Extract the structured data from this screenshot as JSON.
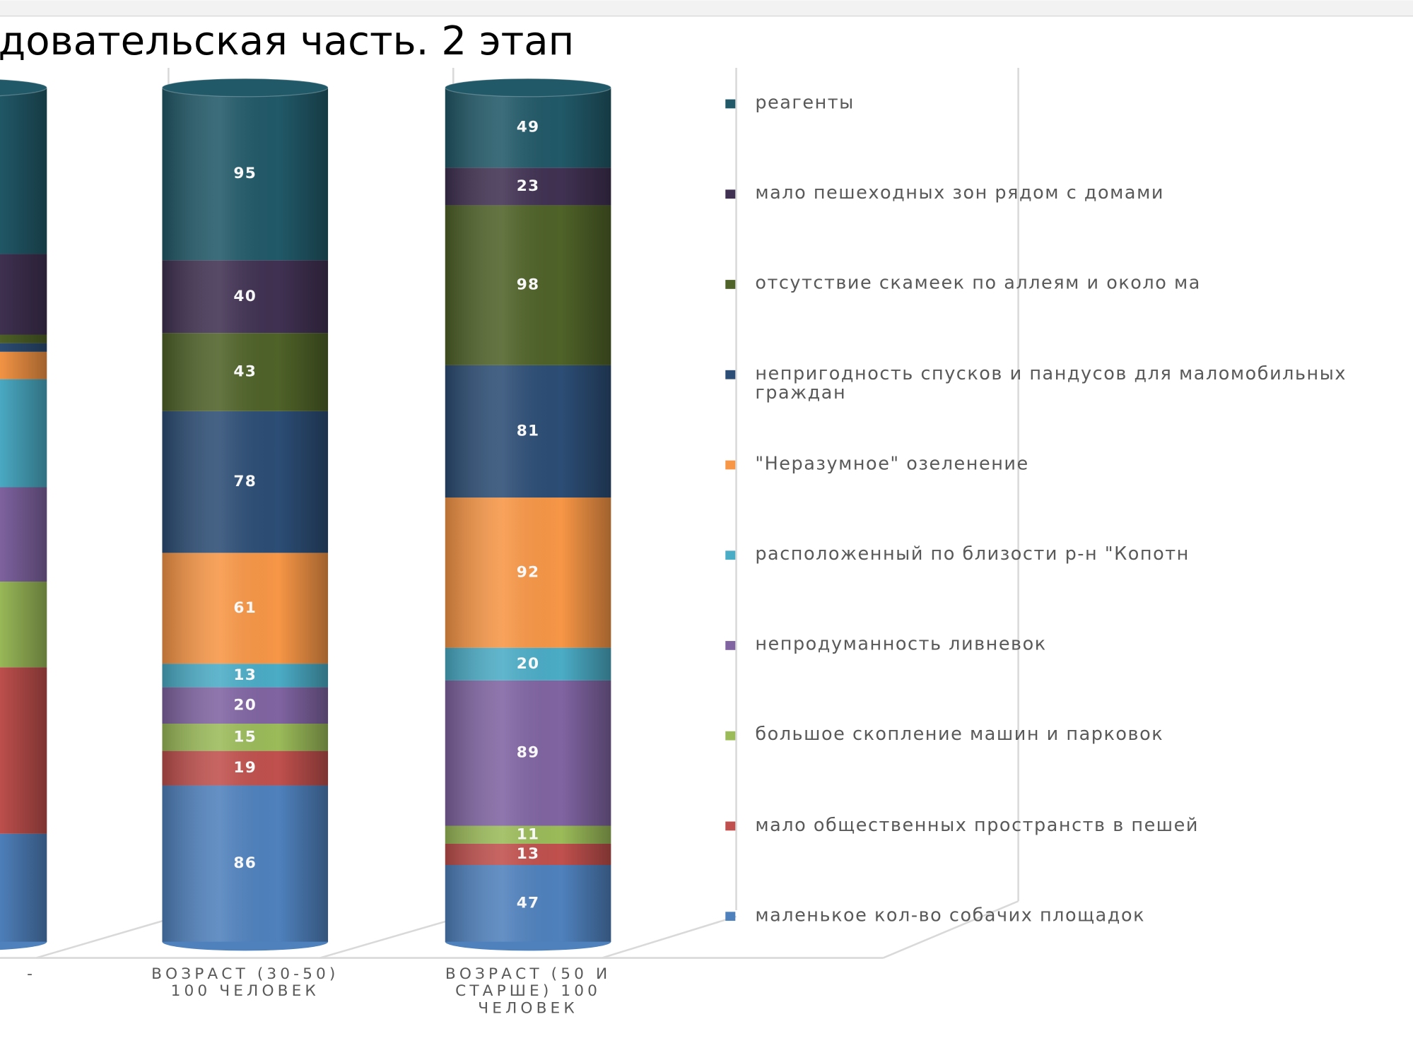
{
  "chart_data": {
    "type": "stacked_cylinder",
    "title": "довательская часть. 2 этап",
    "categories": [
      "-",
      "ВОЗРАСТ (30-50) 100 ЧЕЛОВЕК",
      "ВОЗРАСТ (50 И СТАРШЕ) 100 ЧЕЛОВЕК"
    ],
    "series": [
      {
        "name": "маленькое кол-во собачих площадок",
        "color": "#4f81bd",
        "values": [
          63,
          86,
          47
        ]
      },
      {
        "name": "мало общественных пространств в пешей",
        "color": "#c0504d",
        "values": [
          97,
          19,
          13
        ]
      },
      {
        "name": "большое скопление машин и парковок",
        "color": "#9bbb59",
        "values": [
          50,
          15,
          11
        ]
      },
      {
        "name": "непродуманность ливневок",
        "color": "#8064a2",
        "values": [
          55,
          20,
          89
        ]
      },
      {
        "name": "расположенный по близости   р-н \"Копотн",
        "color": "#4bacc6",
        "values": [
          63,
          13,
          20
        ]
      },
      {
        "name": "\"Неразумное\" озеленение",
        "color": "#f79646",
        "values": [
          16,
          61,
          92
        ]
      },
      {
        "name": "непригодность спусков и пандусов для маломобильных граждан",
        "color": "#2c4d75",
        "values": [
          5,
          78,
          81
        ]
      },
      {
        "name": "отсутствие  скамеек по аллеям и около ма",
        "color": "#4f6228",
        "values": [
          5,
          43,
          98
        ]
      },
      {
        "name": "мало пешеходных зон рядом с домами",
        "color": "#403152",
        "values": [
          47,
          40,
          23
        ]
      },
      {
        "name": "реагенты",
        "color": "#215968",
        "values": [
          97,
          95,
          49
        ]
      }
    ]
  }
}
